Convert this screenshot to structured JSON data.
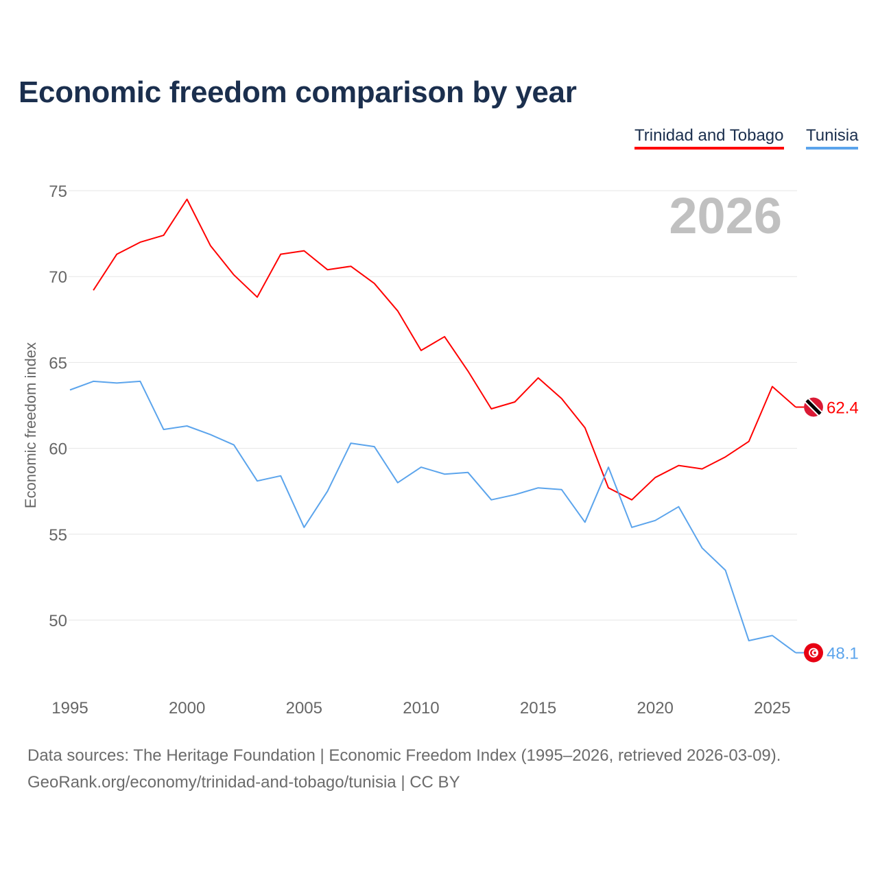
{
  "title": "Economic freedom comparison by year",
  "footer": {
    "line1": "Data sources: The Heritage Foundation | Economic Freedom Index (1995–2026, retrieved 2026-03-09).",
    "line2": "GeoRank.org/economy/trinidad-and-tobago/tunisia | CC BY"
  },
  "chart_data": {
    "type": "line",
    "title": "Economic freedom comparison by year",
    "ylabel": "Economic freedom index",
    "xlabel": "",
    "year_watermark": "2026",
    "xlim": [
      1995,
      2026
    ],
    "ylim": [
      45,
      77
    ],
    "xticks": [
      1995,
      2000,
      2005,
      2010,
      2015,
      2020,
      2025
    ],
    "yticks": [
      50,
      55,
      60,
      65,
      70,
      75
    ],
    "grid": true,
    "legend_position": "top-right",
    "series": [
      {
        "name": "Trinidad and Tobago",
        "color": "#ff0000",
        "flag": "trinidad-and-tobago-flag",
        "end_label": "62.4",
        "x": [
          1996,
          1997,
          1998,
          1999,
          2000,
          2001,
          2002,
          2003,
          2004,
          2005,
          2006,
          2007,
          2008,
          2009,
          2010,
          2011,
          2012,
          2013,
          2014,
          2015,
          2016,
          2017,
          2018,
          2019,
          2020,
          2021,
          2022,
          2023,
          2024,
          2025,
          2026
        ],
        "values": [
          69.2,
          71.3,
          72.0,
          72.4,
          74.5,
          71.8,
          70.1,
          68.8,
          71.3,
          71.5,
          70.4,
          70.6,
          69.6,
          68.0,
          65.7,
          66.5,
          64.5,
          62.3,
          62.7,
          64.1,
          62.9,
          61.2,
          57.7,
          57.0,
          58.3,
          59.0,
          58.8,
          59.5,
          60.4,
          63.6,
          62.4
        ]
      },
      {
        "name": "Tunisia",
        "color": "#5ba4ec",
        "flag": "tunisia-flag",
        "end_label": "48.1",
        "x": [
          1995,
          1996,
          1997,
          1998,
          1999,
          2000,
          2001,
          2002,
          2003,
          2004,
          2005,
          2006,
          2007,
          2008,
          2009,
          2010,
          2011,
          2012,
          2013,
          2014,
          2015,
          2016,
          2017,
          2018,
          2019,
          2020,
          2021,
          2022,
          2023,
          2024,
          2025,
          2026
        ],
        "values": [
          63.4,
          63.9,
          63.8,
          63.9,
          61.1,
          61.3,
          60.8,
          60.2,
          58.1,
          58.4,
          55.4,
          57.5,
          60.3,
          60.1,
          58.0,
          58.9,
          58.5,
          58.6,
          57.0,
          57.3,
          57.7,
          57.6,
          55.7,
          58.9,
          55.4,
          55.8,
          56.6,
          54.2,
          52.9,
          48.8,
          49.1,
          48.1
        ]
      }
    ]
  }
}
